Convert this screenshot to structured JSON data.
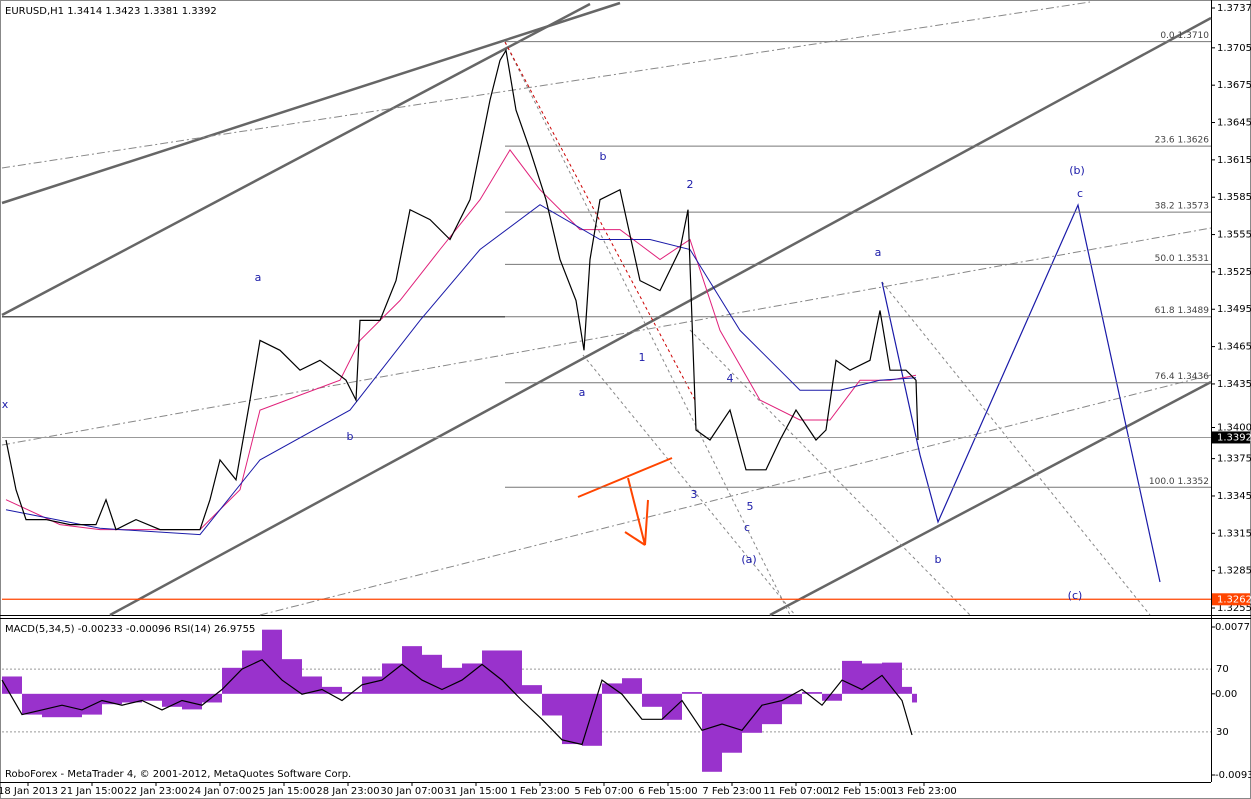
{
  "footer": "RoboForex - MetaTrader 4, © 2001-2012, MetaQuotes Software Corp.",
  "chart_data": [
    {
      "type": "line",
      "title": "EURUSD,H1  1.3414 1.3423 1.3381 1.3392",
      "xlim": [
        0,
        605
      ],
      "xticks": [
        {
          "value": 13,
          "label": "18 Jan 2013"
        },
        {
          "value": 45,
          "label": "21 Jan 15:00"
        },
        {
          "value": 77,
          "label": "22 Jan 23:00"
        },
        {
          "value": 109,
          "label": "24 Jan 07:00"
        },
        {
          "value": 141,
          "label": "25 Jan 15:00"
        },
        {
          "value": 173,
          "label": "28 Jan 23:00"
        },
        {
          "value": 205,
          "label": "30 Jan 07:00"
        },
        {
          "value": 237,
          "label": "31 Jan 15:00"
        },
        {
          "value": 269,
          "label": "1 Feb 23:00"
        },
        {
          "value": 301,
          "label": "5 Feb 07:00"
        },
        {
          "value": 333,
          "label": "6 Feb 15:00"
        },
        {
          "value": 365,
          "label": "7 Feb 23:00"
        },
        {
          "value": 397,
          "label": "11 Feb 07:00"
        },
        {
          "value": 429,
          "label": "12 Feb 15:00"
        },
        {
          "value": 461,
          "label": "13 Feb 23:00"
        }
      ],
      "ylim": [
        1.3255,
        1.3737
      ],
      "yticks": [
        1.3737,
        1.3705,
        1.3675,
        1.3645,
        1.3615,
        1.3585,
        1.3555,
        1.3525,
        1.3495,
        1.3465,
        1.3435,
        {
          "value": 1.34,
          "label": "1.3400"
        },
        1.3375,
        1.3345,
        1.3315,
        1.3285,
        1.3255
      ],
      "series": [
        {
          "color": "#000000",
          "x": [
            2,
            7,
            12,
            22,
            34,
            47,
            52,
            57,
            67,
            79,
            87,
            99,
            104,
            109,
            117,
            124,
            129,
            139,
            149,
            159,
            172,
            177,
            179,
            189,
            197,
            204,
            214,
            224,
            234,
            239,
            244,
            249,
            252,
            257,
            264,
            272,
            279,
            287,
            291,
            294,
            299,
            309,
            319,
            329,
            339,
            343,
            347,
            354,
            364,
            372,
            382,
            389,
            397,
            407,
            412,
            417,
            424,
            434,
            439,
            444,
            452,
            457,
            458
          ],
          "values": [
            1.339,
            1.335,
            1.3326,
            1.3326,
            1.3322,
            1.3322,
            1.3342,
            1.3318,
            1.3326,
            1.3318,
            1.3318,
            1.3318,
            1.3342,
            1.3374,
            1.3358,
            1.3422,
            1.347,
            1.3462,
            1.3446,
            1.3454,
            1.3438,
            1.3422,
            1.3486,
            1.3486,
            1.3518,
            1.3575,
            1.3567,
            1.3551,
            1.3583,
            1.3623,
            1.3663,
            1.3695,
            1.3703,
            1.3655,
            1.3623,
            1.3583,
            1.3535,
            1.3502,
            1.3462,
            1.3535,
            1.3583,
            1.3591,
            1.3518,
            1.351,
            1.3543,
            1.3575,
            1.3398,
            1.339,
            1.3414,
            1.3366,
            1.3366,
            1.339,
            1.3414,
            1.339,
            1.3398,
            1.3454,
            1.3446,
            1.3454,
            1.3494,
            1.3446,
            1.3446,
            1.3438,
            1.339
          ]
        },
        {
          "color": "#e0207a",
          "x": [
            2,
            29,
            49,
            99,
            119,
            129,
            149,
            169,
            179,
            199,
            219,
            239,
            254,
            269,
            289,
            309,
            329,
            344,
            359,
            379,
            399,
            414,
            429,
            444,
            457
          ],
          "values": [
            1.3342,
            1.3322,
            1.3318,
            1.3318,
            1.335,
            1.3414,
            1.3426,
            1.3438,
            1.347,
            1.3502,
            1.3543,
            1.3583,
            1.3623,
            1.3591,
            1.3559,
            1.3559,
            1.3535,
            1.3551,
            1.3478,
            1.3422,
            1.3406,
            1.3406,
            1.3438,
            1.3438,
            1.3442
          ]
        },
        {
          "color": "#1a1aa8",
          "x": [
            2,
            49,
            99,
            129,
            174,
            209,
            239,
            269,
            299,
            324,
            344,
            369,
            399,
            419,
            439,
            457
          ],
          "values": [
            1.3334,
            1.3319,
            1.3314,
            1.3374,
            1.3414,
            1.3486,
            1.3543,
            1.3579,
            1.3551,
            1.3551,
            1.3543,
            1.3478,
            1.343,
            1.343,
            1.3438,
            1.344
          ]
        }
      ],
      "fib_levels": [
        {
          "value": 1.371,
          "label": "0.0 1.3710"
        },
        {
          "value": 1.3626,
          "label": "23.6 1.3626"
        },
        {
          "value": 1.3573,
          "label": "38.2 1.3573"
        },
        {
          "value": 1.3531,
          "label": "50.0 1.3531"
        },
        {
          "value": 1.3489,
          "label": "61.8 1.3489"
        },
        {
          "value": 1.3436,
          "label": "76.4 1.3436"
        },
        {
          "value": 1.3352,
          "label": "100.0 1.3352"
        }
      ],
      "price_marker": 1.3392,
      "support_line": {
        "value": 1.3262,
        "color": "#ff4500"
      },
      "wave_labels": [
        "x",
        "a",
        "b",
        "b",
        "a",
        "1",
        "2",
        "3",
        "4",
        "5",
        "c",
        "(a)",
        "a",
        "b",
        "(b)",
        "c",
        "(c)"
      ]
    },
    {
      "type": "bar",
      "title": "MACD(5,34,5) -0.00233 -0.00096 RSI(14) 26.9755",
      "xlim": [
        0,
        605
      ],
      "ylim": [
        -0.00937,
        0.00771
      ],
      "yticks": [
        0.00771,
        {
          "value": 0,
          "label": "0.00"
        },
        -0.00937
      ],
      "y2lim": [
        0,
        100
      ],
      "y2ticks": [
        70,
        30
      ],
      "series": [
        {
          "color": "#9932cc",
          "x": [
            0,
            10,
            20,
            30,
            40,
            50,
            60,
            70,
            80,
            90,
            100,
            110,
            120,
            130,
            140,
            150,
            160,
            170,
            180,
            190,
            200,
            210,
            220,
            230,
            240,
            250,
            260,
            270,
            280,
            290,
            300,
            310,
            320,
            330,
            340,
            350,
            360,
            370,
            380,
            390,
            400,
            410,
            420,
            430,
            440,
            450,
            455
          ],
          "values": [
            0.002,
            -0.0024,
            -0.0027,
            -0.0027,
            -0.0024,
            -0.0012,
            -0.001,
            -0.0008,
            -0.0015,
            -0.0018,
            -0.001,
            0.003,
            0.005,
            0.0074,
            0.004,
            0.002,
            0.0008,
            0.0002,
            0.002,
            0.0035,
            0.0055,
            0.0045,
            0.003,
            0.0035,
            0.005,
            0.005,
            0.001,
            -0.0025,
            -0.0058,
            -0.006,
            0.0012,
            0.0018,
            -0.0015,
            -0.003,
            0.0002,
            -0.009,
            -0.0068,
            -0.0045,
            -0.0035,
            -0.0012,
            0.0002,
            -0.0008,
            0.0038,
            0.0035,
            0.0036,
            0.0008,
            -0.001
          ]
        },
        {
          "color": "#000000",
          "axis": "y2",
          "x": [
            0,
            10,
            20,
            30,
            40,
            50,
            60,
            70,
            80,
            90,
            100,
            110,
            120,
            130,
            140,
            150,
            160,
            170,
            180,
            190,
            200,
            210,
            220,
            230,
            240,
            250,
            260,
            270,
            280,
            290,
            300,
            310,
            320,
            330,
            340,
            350,
            360,
            370,
            380,
            390,
            400,
            410,
            420,
            430,
            440,
            450,
            455
          ],
          "values": [
            63,
            41,
            44,
            47,
            44,
            50,
            47,
            50,
            44,
            50,
            47,
            57,
            70,
            76,
            63,
            54,
            57,
            50,
            60,
            63,
            73,
            63,
            57,
            63,
            73,
            63,
            50,
            38,
            25,
            22,
            63,
            54,
            38,
            38,
            50,
            31,
            35,
            31,
            47,
            50,
            57,
            47,
            63,
            57,
            66,
            50,
            28
          ]
        }
      ]
    }
  ]
}
